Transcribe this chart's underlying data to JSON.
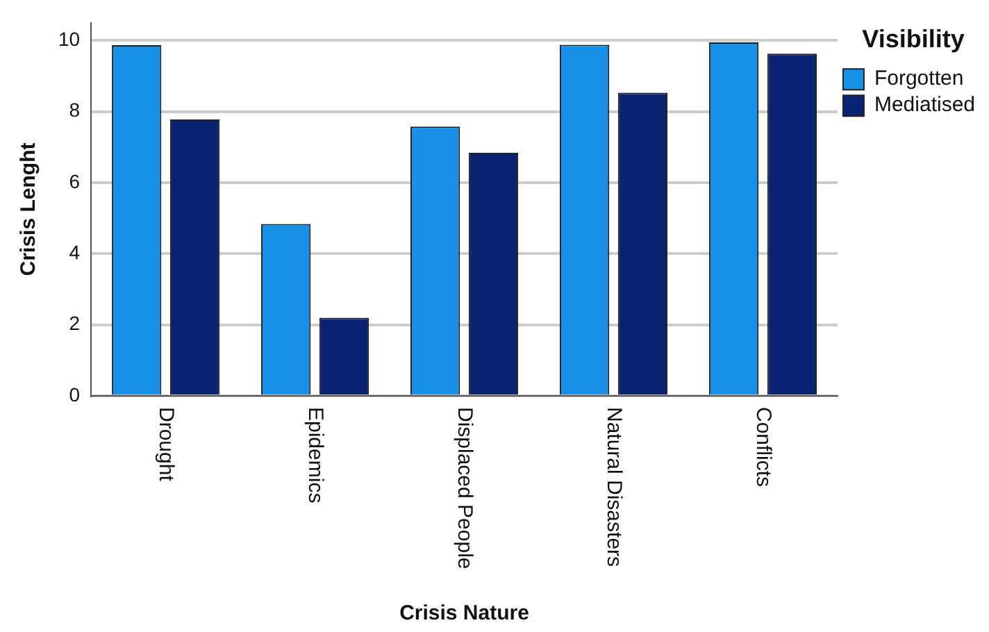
{
  "chart_data": {
    "type": "bar",
    "xlabel": "Crisis Nature",
    "ylabel": "Crisis Lenght",
    "legend_title": "Visibility",
    "legend": "right",
    "categories": [
      "Drought",
      "Epidemics",
      "Displaced People",
      "Natural Disasters",
      "Conflicts"
    ],
    "series": [
      {
        "name": "Forgotten",
        "color": "#1790e6",
        "values": [
          9.87,
          4.84,
          7.58,
          9.88,
          9.95
        ]
      },
      {
        "name": "Mediatised",
        "color": "#0b2472",
        "values": [
          7.78,
          2.2,
          6.84,
          8.53,
          9.63
        ]
      }
    ],
    "ylim": [
      0,
      10.5
    ],
    "yticks": [
      0,
      2,
      4,
      6,
      8,
      10
    ],
    "grid": "y"
  }
}
